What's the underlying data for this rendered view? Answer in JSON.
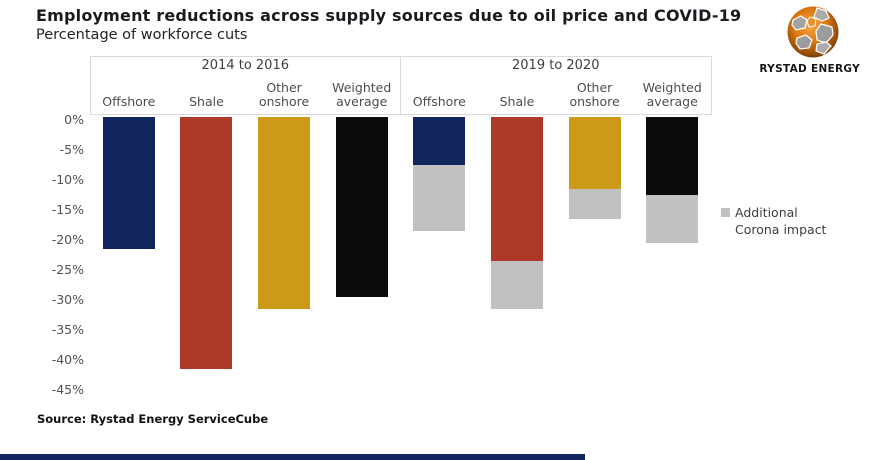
{
  "branding": {
    "logo_text": "RYSTAD ENERGY",
    "logo_orange": "#e07b12",
    "logo_gray": "#a0a0a0"
  },
  "footer": {
    "source": "Source: Rystad Energy ServiceCube",
    "accent_bar_color": "#13265f"
  },
  "chart_data": {
    "type": "bar",
    "title": "Employment reductions across supply sources due to oil price and COVID-19",
    "subtitle": "Percentage of workforce cuts",
    "unit": "%",
    "ylim": [
      -45,
      0
    ],
    "ytick_step": 5,
    "ytick_labels": [
      "0%",
      "-5%",
      "-10%",
      "-15%",
      "-20%",
      "-25%",
      "-30%",
      "-35%",
      "-40%",
      "-45%"
    ],
    "grid": false,
    "categories": [
      "Offshore",
      "Shale",
      "Other onshore",
      "Weighted average"
    ],
    "category_colors": [
      "#12265e",
      "#ad3a28",
      "#cc9a16",
      "#0b0b0b"
    ],
    "corona_color": "#c1c1c1",
    "groups": [
      {
        "label": "2014 to 2016",
        "categories": [
          "Offshore",
          "Shale",
          "Other onshore",
          "Weighted average"
        ],
        "values": [
          -22,
          -42,
          -32,
          -30
        ],
        "corona_additional": [
          0,
          0,
          0,
          0
        ]
      },
      {
        "label": "2019 to 2020",
        "categories": [
          "Offshore",
          "Shale",
          "Other onshore",
          "Weighted average"
        ],
        "values": [
          -8,
          -24,
          -12,
          -13
        ],
        "corona_additional": [
          -11,
          -8,
          -5,
          -8
        ],
        "totals_with_corona": [
          -19,
          -32,
          -17,
          -21
        ]
      }
    ],
    "legend": {
      "label": "Additional Corona impact",
      "position": "right"
    }
  }
}
